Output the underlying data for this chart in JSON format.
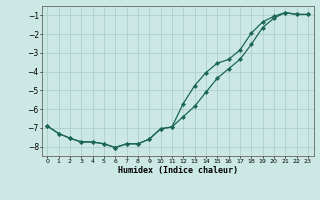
{
  "xlabel": "Humidex (Indice chaleur)",
  "bg_color": "#cce8e4",
  "grid_color": "#b0d0cc",
  "line_color": "#1a6658",
  "xlim": [
    -0.5,
    23.5
  ],
  "ylim": [
    -8.5,
    -0.5
  ],
  "yticks": [
    -8,
    -7,
    -6,
    -5,
    -4,
    -3,
    -2,
    -1
  ],
  "xticks": [
    0,
    1,
    2,
    3,
    4,
    5,
    6,
    7,
    8,
    9,
    10,
    11,
    12,
    13,
    14,
    15,
    16,
    17,
    18,
    19,
    20,
    21,
    22,
    23
  ],
  "line1_x": [
    0,
    1,
    2,
    3,
    4,
    5,
    6,
    7,
    8,
    9,
    10,
    11,
    12,
    13,
    14,
    15,
    16,
    17,
    18,
    19,
    20,
    21,
    22,
    23
  ],
  "line1_y": [
    -6.9,
    -7.3,
    -7.55,
    -7.75,
    -7.75,
    -7.85,
    -8.05,
    -7.85,
    -7.85,
    -7.6,
    -7.05,
    -6.95,
    -6.4,
    -5.85,
    -5.1,
    -4.35,
    -3.85,
    -3.35,
    -2.55,
    -1.65,
    -1.15,
    -0.85,
    -0.95,
    -0.95
  ],
  "line2_x": [
    0,
    1,
    2,
    3,
    4,
    5,
    6,
    7,
    8,
    9,
    10,
    11,
    12,
    13,
    14,
    15,
    16,
    17,
    18,
    19,
    20,
    21,
    22,
    23
  ],
  "line2_y": [
    -6.9,
    -7.3,
    -7.55,
    -7.75,
    -7.75,
    -7.85,
    -8.05,
    -7.85,
    -7.85,
    -7.6,
    -7.05,
    -6.95,
    -5.7,
    -4.75,
    -4.05,
    -3.55,
    -3.35,
    -2.85,
    -1.95,
    -1.35,
    -1.05,
    -0.85,
    -0.95,
    -0.95
  ]
}
